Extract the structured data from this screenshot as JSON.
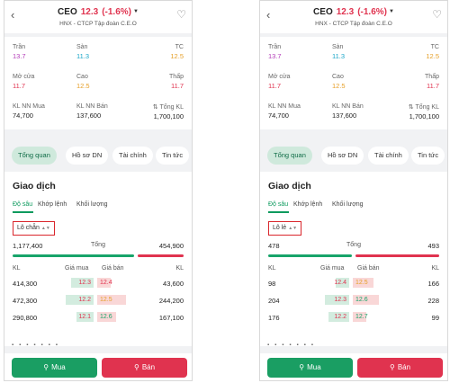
{
  "screens": [
    {
      "symbol": "CEO",
      "price": "12.3",
      "change": "(-1.6%)",
      "company": "HNX - CTCP Tập đoàn C.E.O",
      "stats": [
        {
          "label": "Trần",
          "value": "13.7"
        },
        {
          "label": "Sàn",
          "value": "11.3"
        },
        {
          "label": "TC",
          "value": "12.5"
        },
        {
          "label": "Mở cửa",
          "value": "11.7"
        },
        {
          "label": "Cao",
          "value": "12.5"
        },
        {
          "label": "Thấp",
          "value": "11.7"
        },
        {
          "label": "KL NN Mua",
          "value": "74,700"
        },
        {
          "label": "KL NN Bán",
          "value": "137,600"
        },
        {
          "label": "Tổng KL",
          "value": "1,700,100"
        }
      ],
      "tabs": [
        "Tổng quan",
        "Hồ sơ DN",
        "Tài chính",
        "Tin tức"
      ],
      "section_title": "Giao dịch",
      "subtabs": [
        "Độ sâu",
        "Khớp lệnh",
        "Khối lượng"
      ],
      "lot": "Lô chẵn",
      "total_label": "Tổng",
      "total_buy": "1,177,400",
      "total_sell": "454,900",
      "buy_share": 0.72,
      "headers": [
        "KL",
        "Giá mua",
        "Giá bán",
        "KL"
      ],
      "rows": [
        {
          "buy_qty": "414,300",
          "buy_price": "12.3",
          "sell_price": "12.4",
          "sell_qty": "43,600",
          "buy_w": 0.6,
          "sell_w": 0.35
        },
        {
          "buy_qty": "472,300",
          "buy_price": "12.2",
          "sell_price": "12.5",
          "sell_qty": "244,200",
          "buy_w": 0.75,
          "sell_w": 0.75
        },
        {
          "buy_qty": "290,800",
          "buy_price": "12.1",
          "sell_price": "12.6",
          "sell_qty": "167,100",
          "buy_w": 0.45,
          "sell_w": 0.5
        }
      ],
      "buy_label": "Mua",
      "sell_label": "Bán"
    },
    {
      "symbol": "CEO",
      "price": "12.3",
      "change": "(-1.6%)",
      "company": "HNX - CTCP Tập đoàn C.E.O",
      "stats": [
        {
          "label": "Trần",
          "value": "13.7"
        },
        {
          "label": "Sàn",
          "value": "11.3"
        },
        {
          "label": "TC",
          "value": "12.5"
        },
        {
          "label": "Mở cửa",
          "value": "11.7"
        },
        {
          "label": "Cao",
          "value": "12.5"
        },
        {
          "label": "Thấp",
          "value": "11.7"
        },
        {
          "label": "KL NN Mua",
          "value": "74,700"
        },
        {
          "label": "KL NN Bán",
          "value": "137,600"
        },
        {
          "label": "Tổng KL",
          "value": "1,700,100"
        }
      ],
      "tabs": [
        "Tổng quan",
        "Hồ sơ DN",
        "Tài chính",
        "Tin tức"
      ],
      "section_title": "Giao dịch",
      "subtabs": [
        "Độ sâu",
        "Khớp lệnh",
        "Khối lượng"
      ],
      "lot": "Lô lẻ",
      "total_label": "Tổng",
      "total_buy": "478",
      "total_sell": "493",
      "buy_share": 0.5,
      "headers": [
        "KL",
        "Giá mua",
        "Giá bán",
        "KL"
      ],
      "rows": [
        {
          "buy_qty": "98",
          "buy_price": "12.4",
          "sell_price": "12.5",
          "sell_qty": "166",
          "buy_w": 0.35,
          "sell_w": 0.55
        },
        {
          "buy_qty": "204",
          "buy_price": "12.3",
          "sell_price": "12.6",
          "sell_qty": "228",
          "buy_w": 0.65,
          "sell_w": 0.7
        },
        {
          "buy_qty": "176",
          "buy_price": "12.2",
          "sell_price": "12.7",
          "sell_qty": "99",
          "buy_w": 0.55,
          "sell_w": 0.35
        }
      ],
      "buy_label": "Mua",
      "sell_label": "Bán"
    }
  ]
}
